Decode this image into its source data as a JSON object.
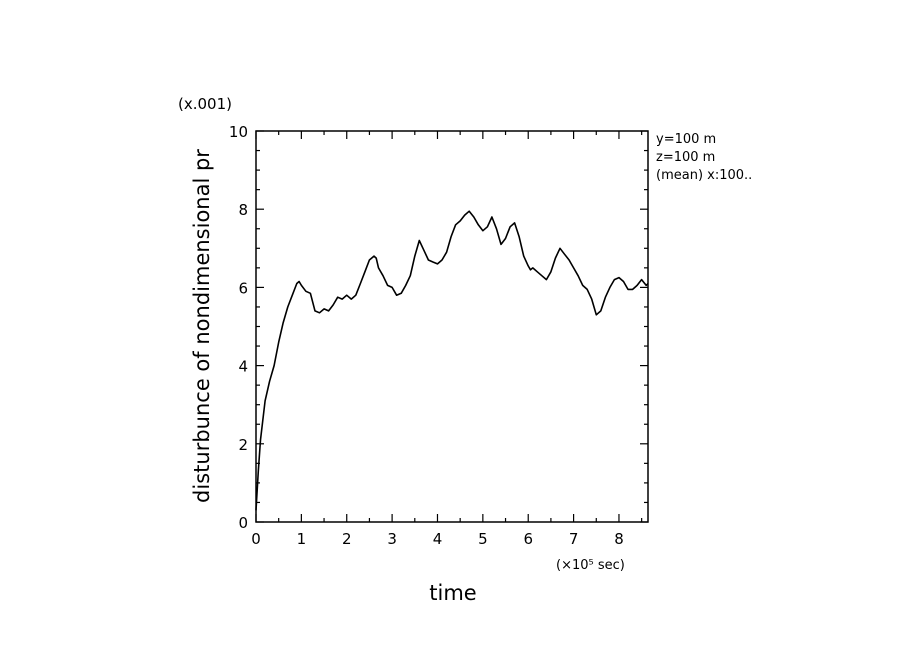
{
  "chart_data": {
    "type": "line",
    "title": "",
    "xlabel": "time",
    "ylabel": "disturbunce of nondimensional pr",
    "x_scale_note": "(×10⁵ sec)",
    "y_scale_note": "(x.001)",
    "xlim": [
      0,
      8.64
    ],
    "ylim": [
      0,
      10
    ],
    "x_ticks": [
      0,
      1,
      2,
      3,
      4,
      5,
      6,
      7,
      8
    ],
    "x_tick_labels": [
      "0",
      "1",
      "2",
      "3",
      "4",
      "5",
      "6",
      "7",
      "8"
    ],
    "y_ticks": [
      0,
      2,
      4,
      6,
      8,
      10
    ],
    "y_tick_labels": [
      "0",
      "2",
      "4",
      "6",
      "8",
      "10"
    ],
    "grid": false,
    "legend": "none",
    "annotations": [
      "y=100 m",
      "z=100 m",
      "(mean) x:100.."
    ],
    "line_color": "#000000",
    "series": [
      {
        "x": [
          0,
          0.05,
          0.1,
          0.15,
          0.2,
          0.3,
          0.4,
          0.5,
          0.6,
          0.7,
          0.8,
          0.9,
          0.95,
          1.0,
          1.1,
          1.2,
          1.3,
          1.4,
          1.5,
          1.6,
          1.7,
          1.8,
          1.9,
          2.0,
          2.1,
          2.2,
          2.3,
          2.4,
          2.5,
          2.6,
          2.65,
          2.7,
          2.8,
          2.9,
          3.0,
          3.1,
          3.2,
          3.3,
          3.4,
          3.5,
          3.6,
          3.7,
          3.8,
          3.9,
          4.0,
          4.1,
          4.2,
          4.3,
          4.4,
          4.5,
          4.6,
          4.7,
          4.8,
          4.9,
          5.0,
          5.1,
          5.2,
          5.3,
          5.4,
          5.5,
          5.6,
          5.7,
          5.8,
          5.9,
          6.0,
          6.05,
          6.1,
          6.2,
          6.3,
          6.4,
          6.5,
          6.6,
          6.7,
          6.8,
          6.9,
          6.95,
          7.0,
          7.1,
          7.2,
          7.3,
          7.4,
          7.5,
          7.6,
          7.7,
          7.8,
          7.9,
          8.0,
          8.1,
          8.2,
          8.3,
          8.4,
          8.5,
          8.6,
          8.64
        ],
        "y": [
          0.3,
          1.3,
          2.1,
          2.6,
          3.1,
          3.6,
          4.0,
          4.6,
          5.1,
          5.5,
          5.8,
          6.1,
          6.15,
          6.05,
          5.9,
          5.85,
          5.4,
          5.35,
          5.45,
          5.4,
          5.55,
          5.75,
          5.7,
          5.8,
          5.7,
          5.8,
          6.1,
          6.4,
          6.7,
          6.8,
          6.75,
          6.5,
          6.3,
          6.05,
          6.0,
          5.8,
          5.85,
          6.05,
          6.3,
          6.8,
          7.2,
          6.95,
          6.7,
          6.65,
          6.6,
          6.7,
          6.9,
          7.3,
          7.6,
          7.7,
          7.85,
          7.95,
          7.8,
          7.6,
          7.45,
          7.55,
          7.8,
          7.5,
          7.1,
          7.25,
          7.55,
          7.65,
          7.3,
          6.8,
          6.55,
          6.45,
          6.5,
          6.4,
          6.3,
          6.2,
          6.4,
          6.75,
          7.0,
          6.85,
          6.7,
          6.6,
          6.5,
          6.3,
          6.05,
          5.95,
          5.7,
          5.3,
          5.4,
          5.75,
          6.0,
          6.2,
          6.25,
          6.15,
          5.95,
          5.95,
          6.05,
          6.2,
          6.05,
          6.1
        ]
      }
    ]
  }
}
